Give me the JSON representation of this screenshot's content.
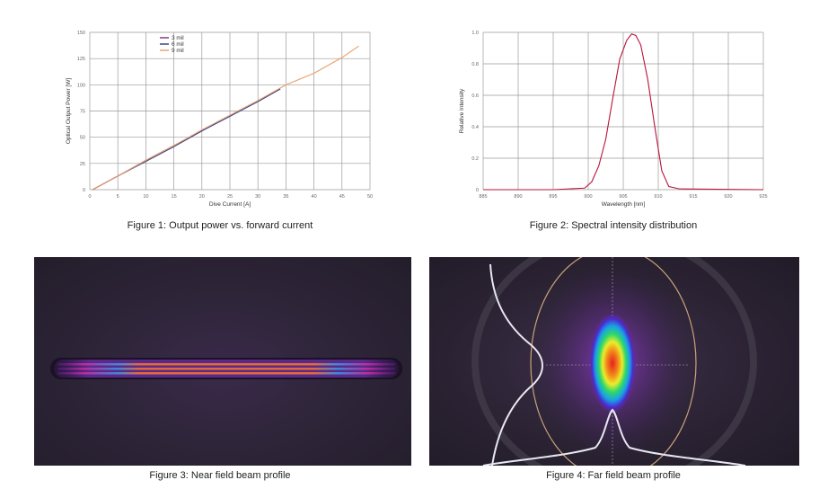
{
  "captions": {
    "fig1": "Figure 1: Output power vs. forward current",
    "fig2": "Figure 2: Spectral intensity distribution",
    "fig3": "Figure 3: Near field beam profile",
    "fig4": "Figure 4: Far field beam profile"
  },
  "chart_data": [
    {
      "type": "line",
      "xlabel": "Dive Current [A]",
      "ylabel": "Optical Output Power [W]",
      "xlim": [
        0,
        50
      ],
      "ylim": [
        0,
        150
      ],
      "xticks": [
        "0",
        "5",
        "10",
        "15",
        "20",
        "25",
        "30",
        "35",
        "40",
        "45",
        "50"
      ],
      "yticks": [
        "0",
        "25",
        "50",
        "75",
        "100",
        "125",
        "150"
      ],
      "grid": true,
      "legend_position": "top-center",
      "series": [
        {
          "name": "3 mil",
          "color": "#7a2e88",
          "x": [
            0.5,
            5,
            10,
            15,
            20,
            20.5
          ],
          "y": [
            0,
            13,
            28,
            42,
            56,
            58
          ]
        },
        {
          "name": "6 mil",
          "color": "#2e3c8a",
          "x": [
            0.5,
            5,
            10,
            15,
            20,
            25,
            30,
            34
          ],
          "y": [
            0,
            13,
            27,
            41,
            56,
            70,
            84,
            96
          ]
        },
        {
          "name": "9 mil",
          "color": "#e8a06a",
          "x": [
            0.5,
            5,
            10,
            15,
            20,
            25,
            30,
            35,
            40,
            45,
            48
          ],
          "y": [
            0,
            13,
            28,
            42,
            57,
            71,
            85,
            100,
            111,
            126,
            137
          ]
        }
      ]
    },
    {
      "type": "line",
      "xlabel": "Wavelength [nm]",
      "ylabel": "Relative Intensity",
      "xlim": [
        885,
        925
      ],
      "ylim": [
        0,
        1.0
      ],
      "xticks": [
        "885",
        "890",
        "895",
        "900",
        "905",
        "910",
        "915",
        "920",
        "925"
      ],
      "yticks": [
        "0",
        "0.2",
        "0.4",
        "0.6",
        "0.8",
        "1.0"
      ],
      "grid": true,
      "series": [
        {
          "color": "#b8143c",
          "x": [
            885,
            895,
            899.5,
            900.5,
            901.5,
            902.5,
            903.5,
            904.5,
            905.5,
            906.2,
            906.8,
            907.5,
            908.5,
            909.5,
            910.5,
            911.5,
            913,
            925
          ],
          "y": [
            0,
            0,
            0.01,
            0.05,
            0.15,
            0.32,
            0.58,
            0.83,
            0.95,
            0.99,
            0.98,
            0.92,
            0.7,
            0.4,
            0.12,
            0.02,
            0.005,
            0
          ]
        }
      ]
    }
  ]
}
